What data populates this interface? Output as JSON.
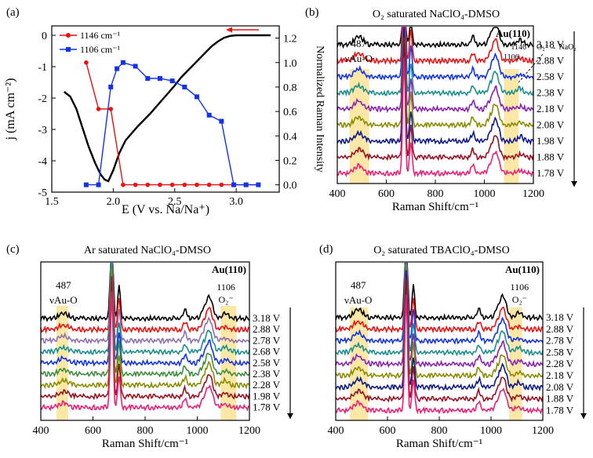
{
  "colors": {
    "black": "#000000",
    "red": "#ee1111",
    "blue": "#1133ee",
    "teal": "#1a8f8f",
    "purple": "#8c20b4",
    "olive": "#8c8c00",
    "navy": "#0b1a8c",
    "maroon": "#9c1020",
    "pink": "#ee1f78",
    "highlight": "#fbe7a6",
    "violet": "#8f6fb0",
    "green": "#3f8f3f"
  },
  "panels": {
    "a": {
      "label": "(a)"
    },
    "b": {
      "label": "(b)",
      "title": "O₂ saturated NaClO₄-DMSO",
      "surface": "Au(110)",
      "peak_label": "487",
      "peak_sub": "νAu-O",
      "ann1": "1146",
      "ann2": "1106",
      "reaction": "O₂⁻→ NaO₂"
    },
    "c": {
      "label": "(c)",
      "title": "Ar saturated NaClO₄-DMSO",
      "surface": "Au(110)",
      "peak_label": "487",
      "peak_sub": "νAu-O",
      "ann2": "1106",
      "ann3": "O₂⁻"
    },
    "d": {
      "label": "(d)",
      "title": "O₂ saturated TBAClO₄-DMSO",
      "surface": "Au(110)",
      "peak_label": "487",
      "peak_sub": "νAu-O",
      "ann2": "1106",
      "ann3": "O₂⁻"
    }
  },
  "chart_data": [
    {
      "panel": "a",
      "type": "line",
      "xlabel": "E (V vs. Na/Na⁺)",
      "ylabel": "j (mA cm⁻²)",
      "ylabel_right": "Normalized Raman Intensity",
      "xlim": [
        1.5,
        3.35
      ],
      "ylim": [
        -5.0,
        0.3
      ],
      "ylim_right": [
        -0.06,
        1.3
      ],
      "xticks": [
        "1.5",
        "2.0",
        "2.5",
        "3.0"
      ],
      "yticks": [
        "0",
        "-1",
        "-2",
        "-3",
        "-4",
        "-5"
      ],
      "yticks_right": [
        "0.0",
        "0.2",
        "0.4",
        "0.6",
        "0.8",
        "1.0",
        "1.2"
      ],
      "series": [
        {
          "name": "CV",
          "axis": "left",
          "x": [
            1.6,
            1.65,
            1.7,
            1.75,
            1.8,
            1.85,
            1.88,
            1.9,
            1.93,
            1.96,
            2.0,
            2.05,
            2.1,
            2.2,
            2.3,
            2.4,
            2.5,
            2.55,
            2.6,
            2.65,
            2.7,
            2.75,
            2.8,
            2.85,
            2.9,
            2.95,
            3.0,
            3.1,
            3.2,
            3.28
          ],
          "y": [
            -1.8,
            -1.95,
            -2.35,
            -2.95,
            -3.55,
            -4.05,
            -4.3,
            -4.45,
            -4.6,
            -4.65,
            -4.3,
            -3.75,
            -3.35,
            -2.9,
            -2.5,
            -2.05,
            -1.6,
            -1.35,
            -1.15,
            -0.95,
            -0.75,
            -0.55,
            -0.35,
            -0.2,
            -0.08,
            -0.02,
            0.0,
            0.0,
            0.0,
            0.0
          ]
        },
        {
          "name": "1146 cm⁻¹",
          "axis": "right",
          "x": [
            1.78,
            1.88,
            1.98,
            2.08,
            2.18,
            2.28,
            2.38,
            2.48,
            2.58,
            2.68,
            2.78,
            2.88,
            2.98,
            3.08,
            3.18
          ],
          "y": [
            1.0,
            0.62,
            0.62,
            0.0,
            0.0,
            0.0,
            0.0,
            0.0,
            0.0,
            0.0,
            0.0,
            0.0,
            0.0,
            0.0,
            0.0
          ]
        },
        {
          "name": "1106 cm⁻¹",
          "axis": "right",
          "x": [
            1.78,
            1.88,
            1.98,
            2.03,
            2.08,
            2.18,
            2.28,
            2.38,
            2.48,
            2.58,
            2.68,
            2.78,
            2.88,
            2.98,
            3.08,
            3.18
          ],
          "y": [
            0.0,
            0.0,
            0.8,
            0.95,
            1.0,
            0.97,
            0.87,
            0.87,
            0.85,
            0.8,
            0.72,
            0.57,
            0.52,
            0.0,
            0.0,
            0.0
          ]
        }
      ],
      "legend": [
        {
          "name": "1146 cm⁻¹"
        },
        {
          "name": "1106 cm⁻¹"
        }
      ],
      "legend_position": "top-left"
    },
    {
      "panel": "b",
      "type": "line",
      "xlabel": "Raman Shift/cm⁻¹",
      "xlim": [
        400,
        1200
      ],
      "xticks": [
        "400",
        "600",
        "800",
        "1000",
        "1200"
      ],
      "potentials": [
        "3.18 V",
        "2.88 V",
        "2.58 V",
        "2.38 V",
        "2.18 V",
        "2.08 V",
        "1.98 V",
        "1.88 V",
        "1.78 V"
      ]
    },
    {
      "panel": "c",
      "type": "line",
      "xlabel": "Raman Shift/cm⁻¹",
      "xlim": [
        400,
        1200
      ],
      "xticks": [
        "400",
        "600",
        "800",
        "1000",
        "1200"
      ],
      "potentials": [
        "3.18 V",
        "2.88 V",
        "2.78 V",
        "2.68 V",
        "2.58 V",
        "2.38 V",
        "2.28 V",
        "1.98 V",
        "1.78 V"
      ]
    },
    {
      "panel": "d",
      "type": "line",
      "xlabel": "Raman Shift/cm⁻¹",
      "xlim": [
        400,
        1200
      ],
      "xticks": [
        "400",
        "600",
        "800",
        "1000",
        "1200"
      ],
      "potentials": [
        "3.18 V",
        "2.88 V",
        "2.78 V",
        "2.58 V",
        "2.28 V",
        "2.18 V",
        "2.08 V",
        "1.88 V",
        "1.78 V"
      ]
    }
  ]
}
